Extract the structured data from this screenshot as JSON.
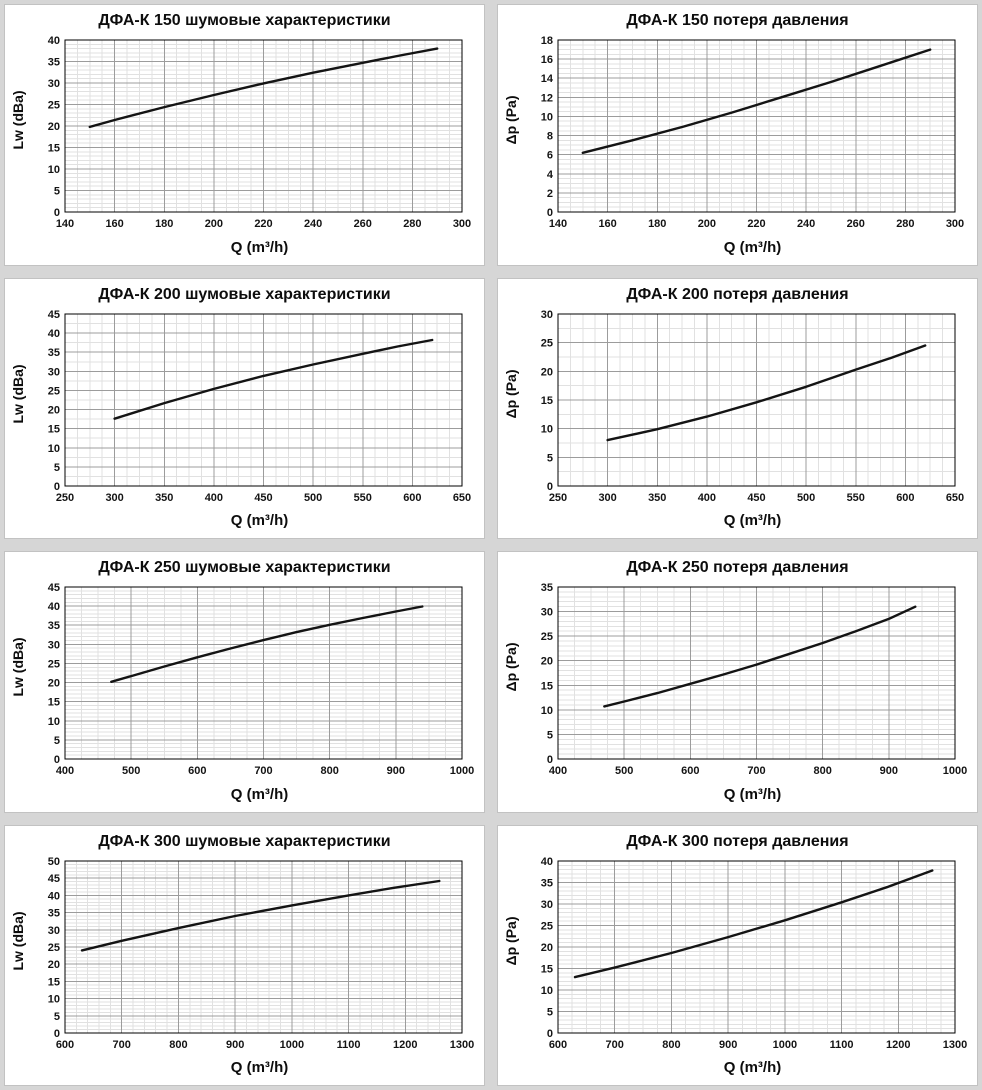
{
  "theme": {
    "page_background": "#d6d6d6",
    "panel_background": "#ffffff",
    "panel_border": "#c2c2c2",
    "line_color": "#141414",
    "grid_major_color": "#9c9c9c",
    "grid_minor_color": "#e1e1e1",
    "frame_color": "#000000",
    "text_color": "#111111"
  },
  "chart_data": [
    {
      "id": "dfa-k-150-noise",
      "type": "line",
      "title": "ДФА-К 150 шумовые характеристики",
      "xlabel": "Q (m³/h)",
      "ylabel": "Lw (dBa)",
      "xlim": [
        140,
        300
      ],
      "ylim": [
        0,
        40
      ],
      "xticks": [
        140,
        160,
        180,
        200,
        220,
        240,
        260,
        280,
        300
      ],
      "yticks": [
        0,
        5,
        10,
        15,
        20,
        25,
        30,
        35,
        40
      ],
      "x_minor_divisions": 4,
      "y_minor_divisions": 5,
      "grid": true,
      "legend": false,
      "points": [
        [
          150,
          19.8
        ],
        [
          160,
          21.4
        ],
        [
          180,
          24.4
        ],
        [
          200,
          27.2
        ],
        [
          220,
          29.9
        ],
        [
          240,
          32.4
        ],
        [
          260,
          34.7
        ],
        [
          275,
          36.4
        ],
        [
          290,
          38.0
        ]
      ]
    },
    {
      "id": "dfa-k-150-pressure",
      "type": "line",
      "title": "ДФА-К 150 потеря давления",
      "xlabel": "Q (m³/h)",
      "ylabel": "Δp (Pa)",
      "xlim": [
        140,
        300
      ],
      "ylim": [
        0,
        18
      ],
      "xticks": [
        140,
        160,
        180,
        200,
        220,
        240,
        260,
        280,
        300
      ],
      "yticks": [
        0,
        2,
        4,
        6,
        8,
        10,
        12,
        14,
        16,
        18
      ],
      "x_minor_divisions": 4,
      "y_minor_divisions": 4,
      "grid": true,
      "legend": false,
      "points": [
        [
          150,
          6.2
        ],
        [
          170,
          7.5
        ],
        [
          190,
          8.9
        ],
        [
          210,
          10.4
        ],
        [
          230,
          12.0
        ],
        [
          250,
          13.6
        ],
        [
          270,
          15.3
        ],
        [
          290,
          17.0
        ]
      ]
    },
    {
      "id": "dfa-k-200-noise",
      "type": "line",
      "title": "ДФА-К 200 шумовые характеристики",
      "xlabel": "Q (m³/h)",
      "ylabel": "Lw (dBa)",
      "xlim": [
        250,
        650
      ],
      "ylim": [
        0,
        45
      ],
      "xticks": [
        250,
        300,
        350,
        400,
        450,
        500,
        550,
        600,
        650
      ],
      "yticks": [
        0,
        5,
        10,
        15,
        20,
        25,
        30,
        35,
        40,
        45
      ],
      "x_minor_divisions": 4,
      "y_minor_divisions": 2,
      "grid": true,
      "legend": false,
      "points": [
        [
          300,
          17.6
        ],
        [
          350,
          21.7
        ],
        [
          400,
          25.4
        ],
        [
          450,
          28.8
        ],
        [
          500,
          31.8
        ],
        [
          550,
          34.6
        ],
        [
          585,
          36.5
        ],
        [
          620,
          38.2
        ]
      ]
    },
    {
      "id": "dfa-k-200-pressure",
      "type": "line",
      "title": "ДФА-К 200 потеря давления",
      "xlabel": "Q (m³/h)",
      "ylabel": "Δp (Pa)",
      "xlim": [
        250,
        650
      ],
      "ylim": [
        0,
        30
      ],
      "xticks": [
        250,
        300,
        350,
        400,
        450,
        500,
        550,
        600,
        650
      ],
      "yticks": [
        0,
        5,
        10,
        15,
        20,
        25,
        30
      ],
      "x_minor_divisions": 4,
      "y_minor_divisions": 2,
      "grid": true,
      "legend": false,
      "points": [
        [
          300,
          8.0
        ],
        [
          350,
          9.9
        ],
        [
          400,
          12.1
        ],
        [
          450,
          14.6
        ],
        [
          500,
          17.3
        ],
        [
          550,
          20.3
        ],
        [
          585,
          22.3
        ],
        [
          620,
          24.5
        ]
      ]
    },
    {
      "id": "dfa-k-250-noise",
      "type": "line",
      "title": "ДФА-К 250 шумовые характеристики",
      "xlabel": "Q (m³/h)",
      "ylabel": "Lw (dBa)",
      "xlim": [
        400,
        1000
      ],
      "ylim": [
        0,
        45
      ],
      "xticks": [
        400,
        500,
        600,
        700,
        800,
        900,
        1000
      ],
      "yticks": [
        0,
        5,
        10,
        15,
        20,
        25,
        30,
        35,
        40,
        45
      ],
      "x_minor_divisions": 4,
      "y_minor_divisions": 5,
      "grid": true,
      "legend": false,
      "points": [
        [
          470,
          20.2
        ],
        [
          500,
          21.7
        ],
        [
          550,
          24.2
        ],
        [
          600,
          26.6
        ],
        [
          650,
          28.9
        ],
        [
          700,
          31.1
        ],
        [
          750,
          33.2
        ],
        [
          800,
          35.1
        ],
        [
          850,
          36.9
        ],
        [
          900,
          38.6
        ],
        [
          940,
          39.9
        ]
      ]
    },
    {
      "id": "dfa-k-250-pressure",
      "type": "line",
      "title": "ДФА-К 250 потеря давления",
      "xlabel": "Q (m³/h)",
      "ylabel": "Δp (Pa)",
      "xlim": [
        400,
        1000
      ],
      "ylim": [
        0,
        35
      ],
      "xticks": [
        400,
        500,
        600,
        700,
        800,
        900,
        1000
      ],
      "yticks": [
        0,
        5,
        10,
        15,
        20,
        25,
        30,
        35
      ],
      "x_minor_divisions": 4,
      "y_minor_divisions": 5,
      "grid": true,
      "legend": false,
      "points": [
        [
          470,
          10.7
        ],
        [
          500,
          11.7
        ],
        [
          550,
          13.4
        ],
        [
          600,
          15.3
        ],
        [
          650,
          17.2
        ],
        [
          700,
          19.2
        ],
        [
          750,
          21.4
        ],
        [
          800,
          23.6
        ],
        [
          850,
          26.0
        ],
        [
          900,
          28.5
        ],
        [
          940,
          31.0
        ]
      ]
    },
    {
      "id": "dfa-k-300-noise",
      "type": "line",
      "title": "ДФА-К 300 шумовые характеристики",
      "xlabel": "Q (m³/h)",
      "ylabel": "Lw (dBa)",
      "xlim": [
        600,
        1300
      ],
      "ylim": [
        0,
        50
      ],
      "xticks": [
        600,
        700,
        800,
        900,
        1000,
        1100,
        1200,
        1300
      ],
      "yticks": [
        0,
        5,
        10,
        15,
        20,
        25,
        30,
        35,
        40,
        45,
        50
      ],
      "x_minor_divisions": 5,
      "y_minor_divisions": 5,
      "grid": true,
      "legend": false,
      "points": [
        [
          630,
          24.0
        ],
        [
          700,
          26.8
        ],
        [
          800,
          30.5
        ],
        [
          900,
          34.0
        ],
        [
          1000,
          37.1
        ],
        [
          1100,
          40.0
        ],
        [
          1180,
          42.2
        ],
        [
          1260,
          44.2
        ]
      ]
    },
    {
      "id": "dfa-k-300-pressure",
      "type": "line",
      "title": "ДФА-К 300 потеря давления",
      "xlabel": "Q (m³/h)",
      "ylabel": "Δp (Pa)",
      "xlim": [
        600,
        1300
      ],
      "ylim": [
        0,
        40
      ],
      "xticks": [
        600,
        700,
        800,
        900,
        1000,
        1100,
        1200,
        1300
      ],
      "yticks": [
        0,
        5,
        10,
        15,
        20,
        25,
        30,
        35,
        40
      ],
      "x_minor_divisions": 4,
      "y_minor_divisions": 5,
      "grid": true,
      "legend": false,
      "points": [
        [
          630,
          13.0
        ],
        [
          700,
          15.2
        ],
        [
          800,
          18.6
        ],
        [
          900,
          22.3
        ],
        [
          1000,
          26.2
        ],
        [
          1100,
          30.4
        ],
        [
          1180,
          33.9
        ],
        [
          1260,
          37.8
        ]
      ]
    }
  ]
}
